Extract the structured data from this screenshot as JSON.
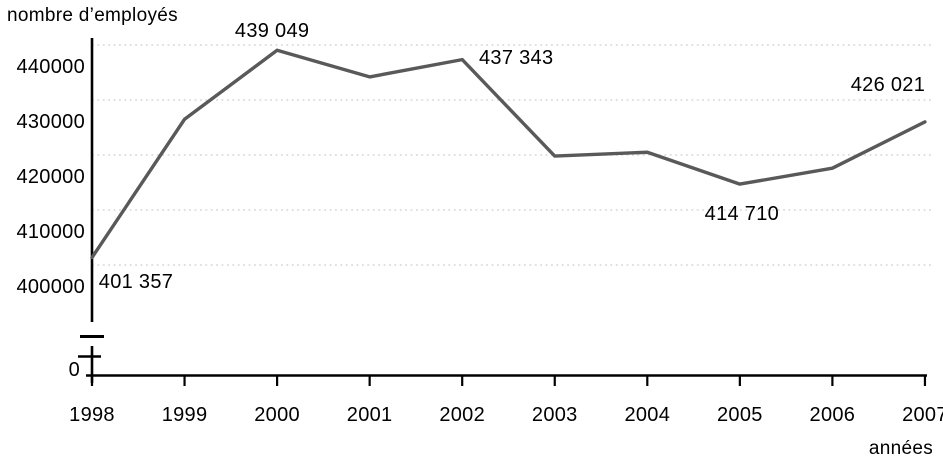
{
  "chart_data": {
    "type": "line",
    "title": "nombre d'employés",
    "ylabel_title": "nombre d’employés",
    "xlabel": "années",
    "categories": [
      "1998",
      "1999",
      "2000",
      "2001",
      "2002",
      "2003",
      "2004",
      "2005",
      "2006",
      "2007"
    ],
    "series": [
      {
        "name": "nombre d'employés",
        "values": [
          401357,
          426500,
          439049,
          434200,
          437343,
          419800,
          420500,
          414710,
          417600,
          426021
        ]
      }
    ],
    "point_labels": [
      {
        "category": "1998",
        "text": "401 357"
      },
      {
        "category": "2000",
        "text": "439 049"
      },
      {
        "category": "2002",
        "text": "437 343"
      },
      {
        "category": "2005",
        "text": "414 710"
      },
      {
        "category": "2007",
        "text": "426 021"
      }
    ],
    "estimated_categories": [
      "1999",
      "2001",
      "2003",
      "2004",
      "2006"
    ],
    "y_ticks": [
      {
        "value": 440000,
        "label": "440000"
      },
      {
        "value": 430000,
        "label": "430000"
      },
      {
        "value": 420000,
        "label": "420000"
      },
      {
        "value": 410000,
        "label": "410000"
      },
      {
        "value": 400000,
        "label": "400000"
      }
    ],
    "origin_label": "0",
    "axis_break": true,
    "grid": "horizontal-dotted",
    "legend": "none",
    "ylim": [
      400000,
      445000
    ],
    "colors": {
      "line": "#595959",
      "grid": "#d6d6d6",
      "axis": "#000000",
      "text": "#000000",
      "background": "#ffffff"
    }
  }
}
